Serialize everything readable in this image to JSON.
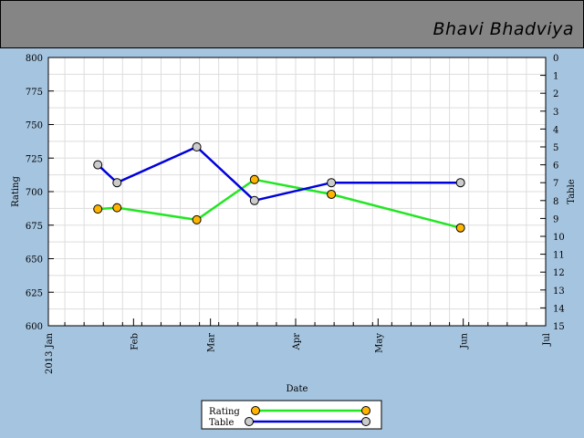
{
  "header": {
    "player_name": "Bhavi Bhadviya"
  },
  "colors": {
    "background": "#a5c4df",
    "header": "#858585",
    "rating_line": "#22e622",
    "table_line": "#0000dd",
    "rating_marker": "#ffb400",
    "table_marker": "#cccccc",
    "grid": "#dddddd"
  },
  "chart_data": {
    "type": "line",
    "title": "",
    "xlabel": "Date",
    "ylabel": "Rating",
    "y2label": "Table",
    "ylim": [
      600,
      800
    ],
    "y2lim": [
      0,
      15
    ],
    "y2_inverted": true,
    "xlim": [
      "2013-01-01",
      "2013-07-01"
    ],
    "x_ticks": [
      "2013 Jan",
      "Feb",
      "Mar",
      "Apr",
      "May",
      "Jun",
      "Jul"
    ],
    "y_ticks": [
      600,
      625,
      650,
      675,
      700,
      725,
      750,
      775,
      800
    ],
    "y2_ticks": [
      0,
      1,
      2,
      3,
      4,
      5,
      6,
      7,
      8,
      9,
      10,
      11,
      12,
      13,
      14,
      15
    ],
    "grid": true,
    "legend": "bottom-center",
    "series": [
      {
        "name": "Rating",
        "axis": "left",
        "x": [
          "2013-01-19",
          "2013-01-26",
          "2013-02-24",
          "2013-03-17",
          "2013-04-14",
          "2013-05-31"
        ],
        "y": [
          687,
          688,
          679,
          709,
          698,
          673
        ]
      },
      {
        "name": "Table",
        "axis": "right",
        "x": [
          "2013-01-19",
          "2013-01-26",
          "2013-02-24",
          "2013-03-17",
          "2013-04-14",
          "2013-05-31"
        ],
        "y": [
          6,
          7,
          5,
          8,
          7,
          7
        ]
      }
    ]
  }
}
